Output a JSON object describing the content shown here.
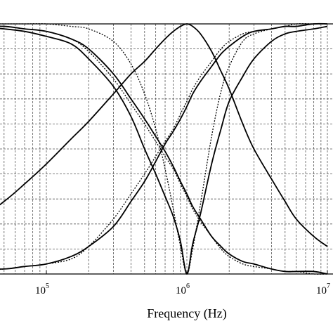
{
  "chart_data": {
    "type": "line",
    "title": "",
    "xlabel": "Frequency (Hz)",
    "ylabel": "",
    "xscale": "log",
    "xlim": [
      10000,
      10000000
    ],
    "visible_xlim": [
      16000,
      10000000
    ],
    "ylim": [
      0,
      1
    ],
    "grid": "major and minor, dashed",
    "x_ticks": [
      {
        "base": "10",
        "exp": "5",
        "value": 100000
      },
      {
        "base": "10",
        "exp": "6",
        "value": 1000000
      },
      {
        "base": "10",
        "exp": "7",
        "value": 10000000
      }
    ],
    "x": [
      16000,
      20000,
      30000,
      50000,
      70000,
      100000,
      150000,
      200000,
      300000,
      400000,
      500000,
      600000,
      700000,
      800000,
      900000,
      1000000,
      1100000,
      1250000,
      1500000,
      1750000,
      2000000,
      2500000,
      3000000,
      4000000,
      5000000,
      6000000,
      8000000,
      10000000
    ],
    "series": [
      {
        "style": "solid",
        "values": [
          0.99,
          0.99,
          0.99,
          0.98,
          0.97,
          0.95,
          0.92,
          0.86,
          0.75,
          0.63,
          0.5,
          0.4,
          0.31,
          0.23,
          0.13,
          0.0,
          0.12,
          0.24,
          0.44,
          0.58,
          0.69,
          0.79,
          0.86,
          0.93,
          0.96,
          0.97,
          0.98,
          0.99
        ]
      },
      {
        "style": "solid",
        "values": [
          0.11,
          0.14,
          0.2,
          0.29,
          0.36,
          0.44,
          0.54,
          0.61,
          0.72,
          0.8,
          0.85,
          0.9,
          0.94,
          0.97,
          0.99,
          1.0,
          0.99,
          0.96,
          0.89,
          0.81,
          0.74,
          0.6,
          0.5,
          0.38,
          0.29,
          0.22,
          0.15,
          0.11
        ]
      },
      {
        "style": "solid",
        "values": [
          0.99,
          0.99,
          0.99,
          0.99,
          0.98,
          0.97,
          0.94,
          0.9,
          0.8,
          0.7,
          0.62,
          0.55,
          0.49,
          0.43,
          0.37,
          0.32,
          0.27,
          0.22,
          0.15,
          0.11,
          0.08,
          0.05,
          0.04,
          0.02,
          0.01,
          0.01,
          0.01,
          0.0
        ]
      },
      {
        "style": "solid",
        "values": [
          0.01,
          0.01,
          0.02,
          0.02,
          0.03,
          0.04,
          0.07,
          0.11,
          0.19,
          0.29,
          0.37,
          0.45,
          0.52,
          0.57,
          0.62,
          0.67,
          0.72,
          0.77,
          0.83,
          0.88,
          0.91,
          0.95,
          0.97,
          0.98,
          0.99,
          0.99,
          1.0,
          1.0
        ]
      },
      {
        "style": "dotted",
        "values": [
          1.0,
          1.0,
          1.0,
          1.0,
          1.0,
          1.0,
          0.99,
          0.98,
          0.93,
          0.84,
          0.72,
          0.58,
          0.42,
          0.26,
          0.11,
          0.0,
          0.1,
          0.28,
          0.55,
          0.73,
          0.83,
          0.93,
          0.96,
          0.98,
          0.99,
          1.0,
          1.0,
          1.0
        ]
      },
      {
        "style": "dotted",
        "values": [
          0.99,
          0.99,
          0.99,
          0.99,
          0.98,
          0.97,
          0.94,
          0.89,
          0.78,
          0.68,
          0.6,
          0.53,
          0.47,
          0.42,
          0.36,
          0.31,
          0.26,
          0.21,
          0.15,
          0.1,
          0.07,
          0.04,
          0.03,
          0.02,
          0.01,
          0.01,
          0.0,
          0.0
        ]
      },
      {
        "style": "dotted",
        "values": [
          0.01,
          0.01,
          0.01,
          0.02,
          0.03,
          0.04,
          0.06,
          0.11,
          0.22,
          0.32,
          0.4,
          0.47,
          0.53,
          0.58,
          0.64,
          0.69,
          0.74,
          0.79,
          0.85,
          0.9,
          0.93,
          0.96,
          0.97,
          0.98,
          0.99,
          0.99,
          1.0,
          1.0
        ]
      }
    ]
  }
}
